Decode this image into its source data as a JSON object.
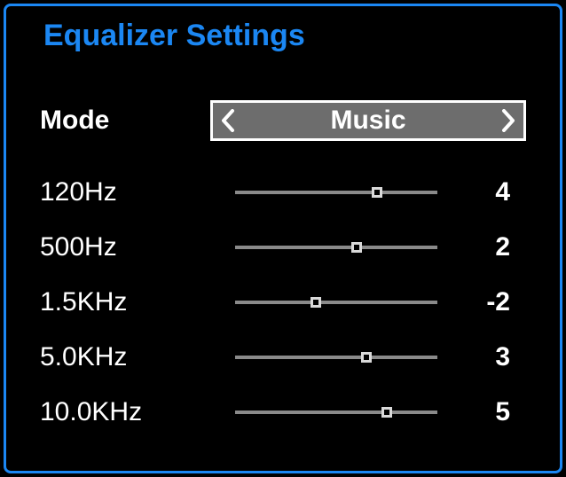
{
  "title": "Equalizer Settings",
  "colors": {
    "accent": "#1b87f3",
    "fg": "#ffffff",
    "select_bg": "#6d6d6d",
    "slider_track": "#8a8a8a",
    "slider_thumb": "#000000",
    "slider_thumb_border": "#d9d9d9"
  },
  "mode": {
    "label": "Mode",
    "value": "Music"
  },
  "slider_range": {
    "min": -10,
    "max": 10
  },
  "bands": [
    {
      "freq": "120Hz",
      "value": 4
    },
    {
      "freq": "500Hz",
      "value": 2
    },
    {
      "freq": "1.5KHz",
      "value": -2
    },
    {
      "freq": "5.0KHz",
      "value": 3
    },
    {
      "freq": "10.0KHz",
      "value": 5
    }
  ]
}
